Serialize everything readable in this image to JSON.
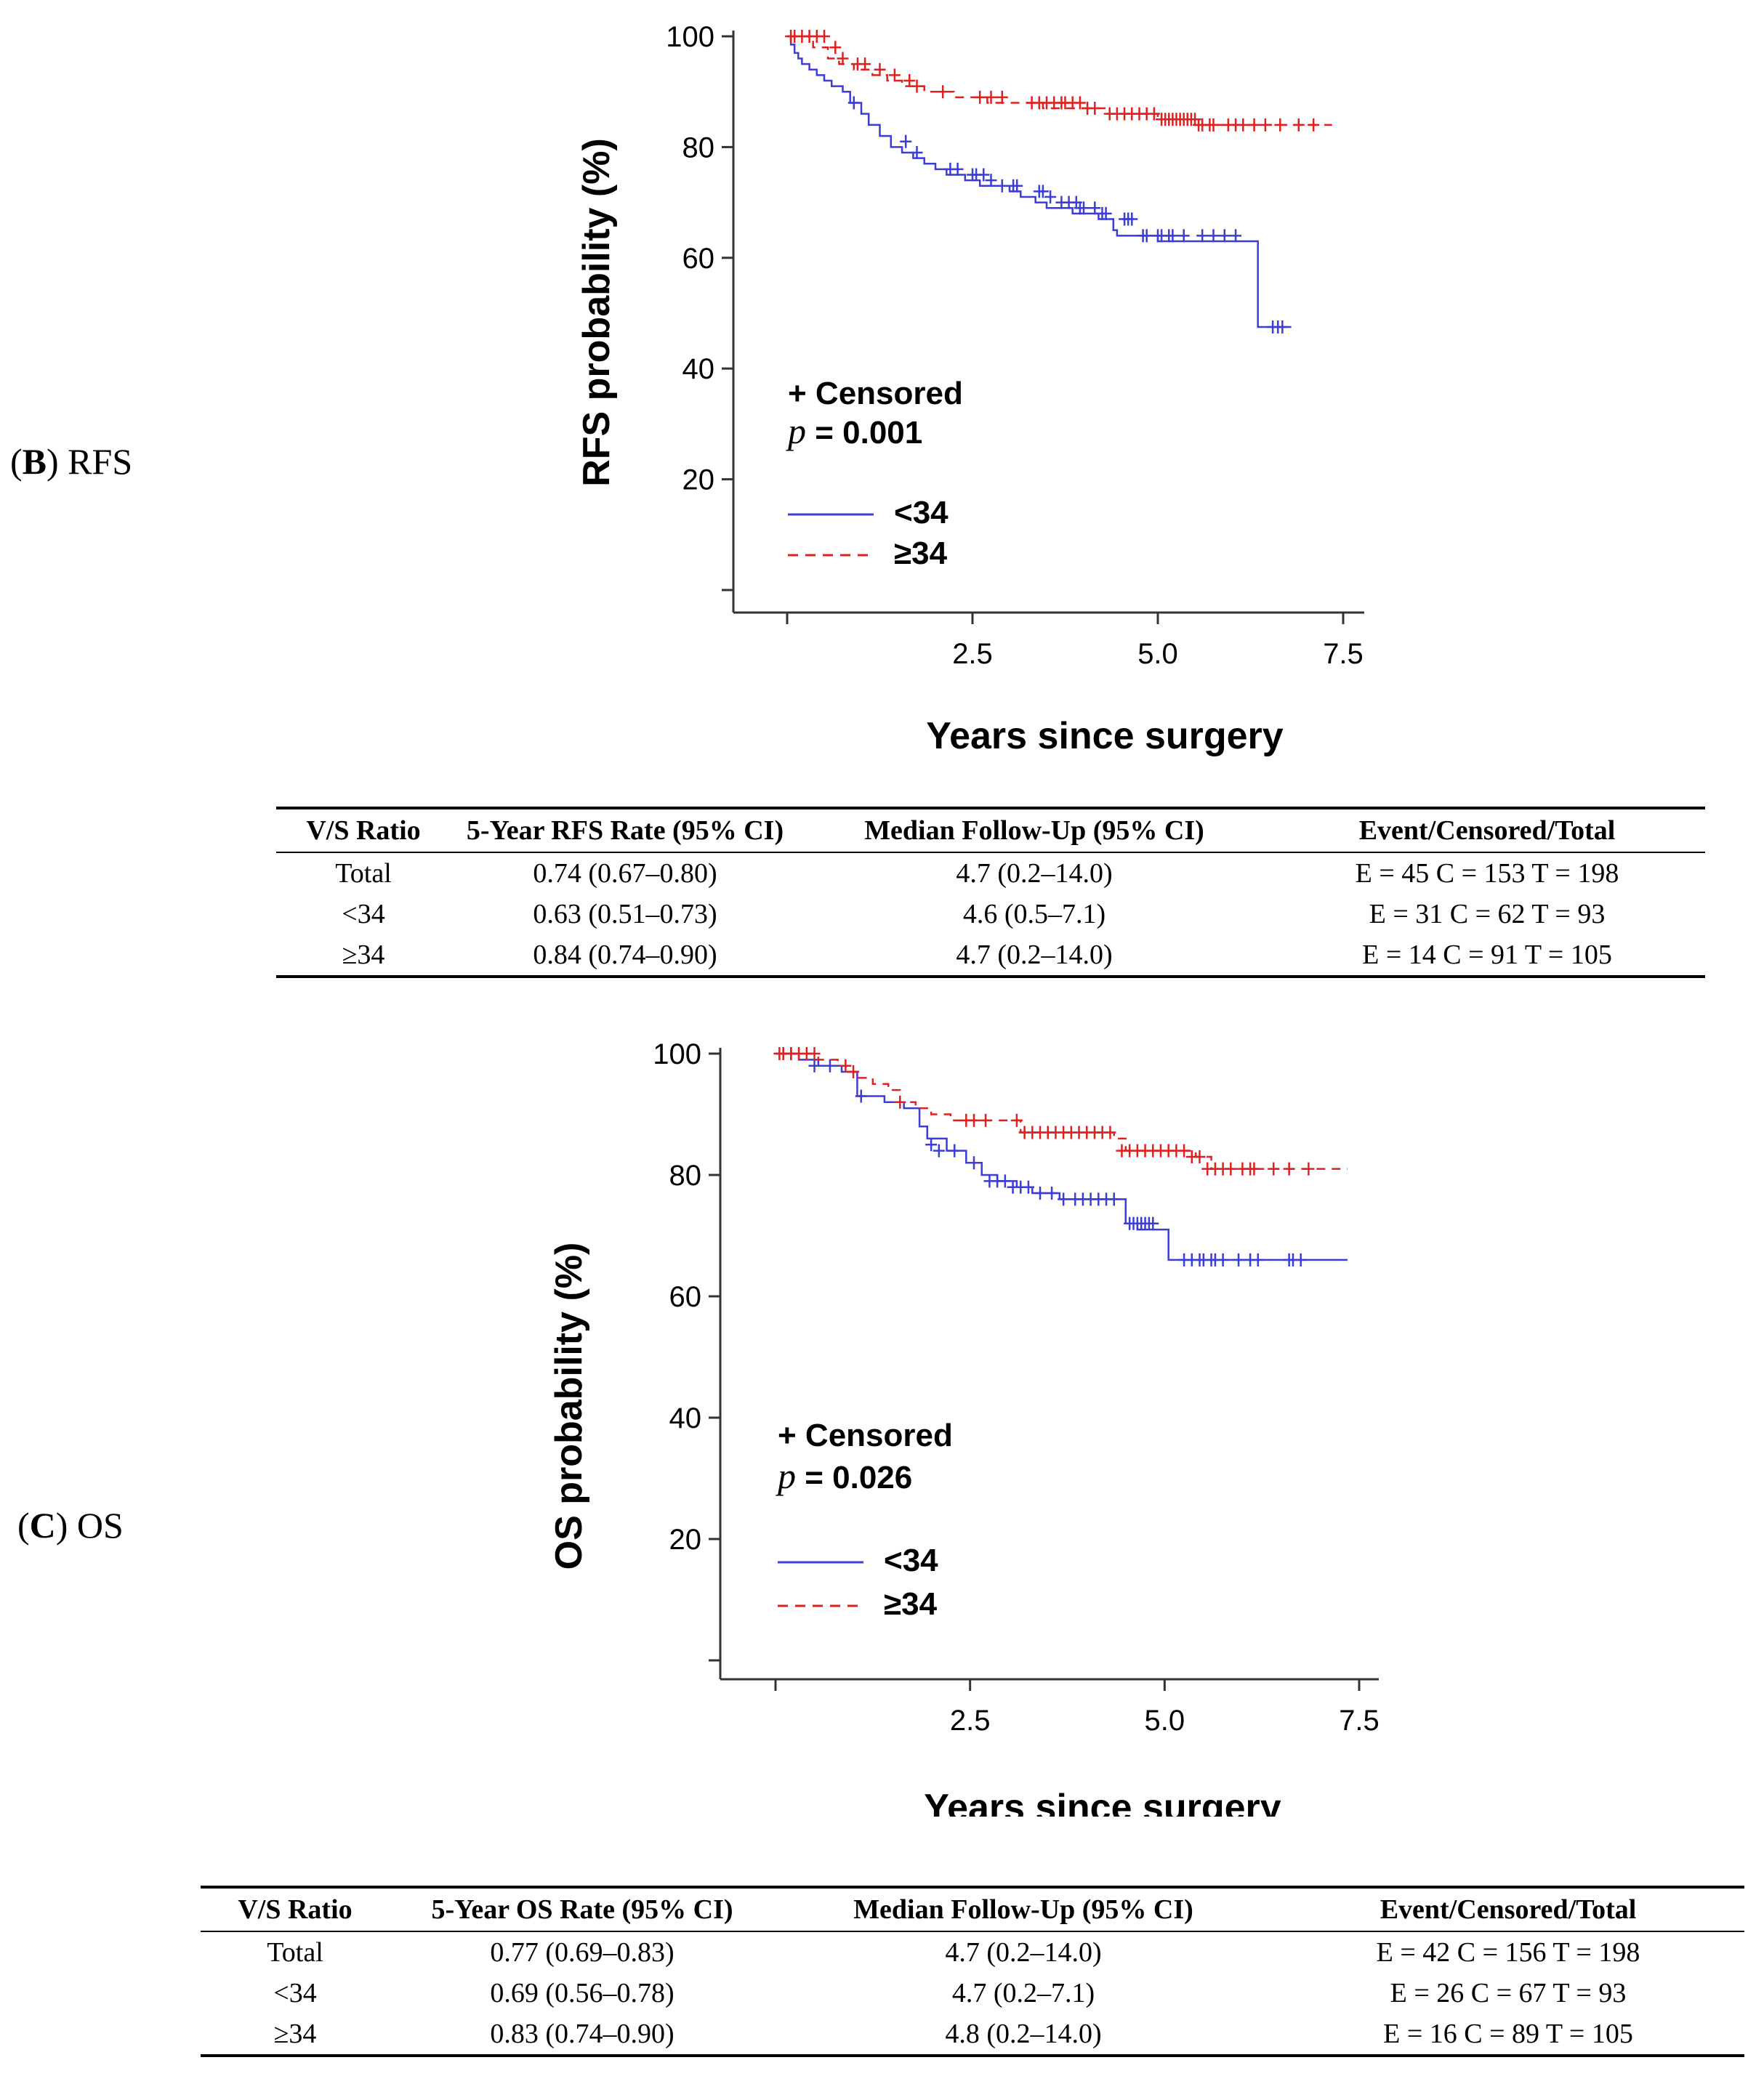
{
  "panels": [
    {
      "label_letter": "B",
      "label_text": "RFS",
      "chart_data": {
        "type": "line",
        "subtype": "kaplan-meier",
        "title": "",
        "xlabel": "Years since surgery",
        "ylabel": "RFS probability (%)",
        "xlim": [
          -0.5,
          7.8
        ],
        "ylim": [
          0,
          102
        ],
        "xticks": [
          "2.5",
          "5.0",
          "7.5"
        ],
        "yticks": [
          "100",
          "80",
          "60",
          "40",
          "20"
        ],
        "censored_label": "+ Censored",
        "p_symbol": "p",
        "p_text": " = 0.001",
        "series": [
          {
            "name": "<34",
            "color": "#3c3cd6",
            "dash": false,
            "x": [
              0,
              0.05,
              0.1,
              0.15,
              0.2,
              0.3,
              0.4,
              0.5,
              0.6,
              0.75,
              0.85,
              1.0,
              1.1,
              1.25,
              1.4,
              1.55,
              1.7,
              1.85,
              2.0,
              2.15,
              2.4,
              2.6,
              3.0,
              3.15,
              3.35,
              3.5,
              3.85,
              4.2,
              4.4,
              4.45,
              5.0,
              6.3,
              6.35,
              6.7,
              6.75,
              6.8
            ],
            "y": [
              100,
              98.5,
              97,
              96,
              95,
              94,
              93,
              92,
              91,
              90,
              88,
              86,
              84,
              82,
              80,
              79,
              78,
              77,
              76,
              75,
              74,
              73,
              72,
              71,
              70,
              69,
              68,
              67,
              65,
              64,
              63,
              63,
              47.5,
              47.5,
              47.5,
              47.5
            ],
            "censor_x": [
              0.9,
              1.6,
              1.75,
              2.2,
              2.3,
              2.5,
              2.55,
              2.65,
              2.75,
              2.9,
              3.05,
              3.1,
              3.4,
              3.45,
              3.55,
              3.7,
              3.8,
              3.9,
              3.95,
              4.0,
              4.15,
              4.25,
              4.3,
              4.55,
              4.6,
              4.65,
              4.8,
              4.85,
              5.0,
              5.05,
              5.15,
              5.2,
              5.35,
              5.6,
              5.75,
              5.9,
              6.05,
              6.55,
              6.62,
              6.68
            ],
            "censor_y": [
              88,
              81,
              79,
              76,
              76,
              75,
              75,
              75,
              74,
              73,
              73,
              73,
              72,
              72,
              71,
              70,
              70,
              70,
              69,
              69,
              69,
              68,
              68,
              67,
              67,
              67,
              64,
              64,
              64,
              64,
              64,
              64,
              64,
              64,
              64,
              64,
              64,
              47.5,
              47.5,
              47.5
            ]
          },
          {
            "name": "≥34",
            "color": "#e02020",
            "dash": true,
            "x": [
              0,
              0.35,
              0.55,
              0.7,
              0.9,
              1.15,
              1.35,
              1.55,
              1.85,
              2.25,
              2.7,
              3.2,
              3.45,
              4.3,
              5.0,
              5.6,
              6.5,
              7.35
            ],
            "y": [
              100,
              98,
              96,
              95,
              94,
              93,
              92,
              91,
              90,
              89,
              88,
              88,
              87,
              86,
              85,
              84,
              84,
              84
            ],
            "censor_x": [
              0.05,
              0.1,
              0.2,
              0.3,
              0.4,
              0.5,
              0.65,
              0.75,
              0.95,
              1.05,
              1.25,
              1.45,
              1.65,
              1.75,
              2.1,
              2.6,
              2.75,
              2.9,
              3.3,
              3.4,
              3.5,
              3.6,
              3.7,
              3.75,
              3.85,
              3.95,
              4.05,
              4.15,
              4.35,
              4.45,
              4.55,
              4.65,
              4.75,
              4.85,
              4.95,
              5.05,
              5.1,
              5.15,
              5.2,
              5.25,
              5.3,
              5.35,
              5.4,
              5.45,
              5.5,
              5.55,
              5.6,
              5.7,
              5.75,
              5.95,
              6.05,
              6.15,
              6.3,
              6.45,
              6.65,
              6.9,
              7.1
            ],
            "censor_y": [
              100,
              100,
              100,
              100,
              100,
              100,
              98,
              96,
              95,
              95,
              94,
              93,
              92,
              91,
              90,
              89,
              89,
              89,
              88,
              88,
              88,
              88,
              88,
              88,
              88,
              88,
              87,
              87,
              86,
              86,
              86,
              86,
              86,
              86,
              86,
              85,
              85,
              85,
              85,
              85,
              85,
              85,
              85,
              85,
              85,
              84,
              84,
              84,
              84,
              84,
              84,
              84,
              84,
              84,
              84,
              84,
              84
            ]
          }
        ]
      },
      "table": {
        "headers": [
          "V/S Ratio",
          "5-Year RFS Rate (95% CI)",
          "Median Follow-Up (95% CI)",
          "Event/Censored/Total"
        ],
        "rows": [
          [
            "Total",
            "0.74 (0.67–0.80)",
            "4.7 (0.2–14.0)",
            "E = 45 C = 153 T = 198"
          ],
          [
            "<34",
            "0.63 (0.51–0.73)",
            "4.6 (0.5–7.1)",
            "E = 31 C = 62 T = 93"
          ],
          [
            "≥34",
            "0.84 (0.74–0.90)",
            "4.7 (0.2–14.0)",
            "E = 14 C = 91 T = 105"
          ]
        ]
      }
    },
    {
      "label_letter": "C",
      "label_text": "OS",
      "chart_data": {
        "type": "line",
        "subtype": "kaplan-meier",
        "title": "",
        "xlabel": "Years since surgery",
        "ylabel": "OS probability (%)",
        "xlim": [
          -0.5,
          7.8
        ],
        "ylim": [
          0,
          102
        ],
        "xticks": [
          "2.5",
          "5.0",
          "7.5"
        ],
        "yticks": [
          "100",
          "80",
          "60",
          "40",
          "20"
        ],
        "censored_label": "+ Censored",
        "p_symbol": "p",
        "p_text": " = 0.026",
        "series": [
          {
            "name": "<34",
            "color": "#3c3cd6",
            "dash": false,
            "x": [
              0,
              0.3,
              0.55,
              0.85,
              1.05,
              1.4,
              1.65,
              1.85,
              1.95,
              2.2,
              2.45,
              2.65,
              2.85,
              3.1,
              3.3,
              3.65,
              4.5,
              4.65,
              5.05,
              6.0,
              7.35
            ],
            "y": [
              100,
              99,
              98,
              97,
              93,
              92,
              91,
              88,
              86,
              84,
              82,
              80,
              79,
              78,
              77,
              76,
              72,
              71,
              66,
              66,
              66
            ],
            "censor_x": [
              0.1,
              0.2,
              0.5,
              0.7,
              1.1,
              2.0,
              2.1,
              2.3,
              2.55,
              2.75,
              2.85,
              2.95,
              3.05,
              3.15,
              3.25,
              3.4,
              3.55,
              3.7,
              3.85,
              3.95,
              4.05,
              4.15,
              4.25,
              4.35,
              4.55,
              4.6,
              4.65,
              4.7,
              4.75,
              4.8,
              4.85,
              5.25,
              5.35,
              5.45,
              5.5,
              5.6,
              5.65,
              5.75,
              5.95,
              6.1,
              6.2,
              6.6,
              6.65,
              6.75
            ],
            "censor_y": [
              100,
              100,
              98,
              98,
              93,
              85,
              84,
              84,
              82,
              79,
              79,
              79,
              78,
              78,
              78,
              77,
              77,
              76,
              76,
              76,
              76,
              76,
              76,
              76,
              72,
              72,
              72,
              72,
              72,
              72,
              72,
              66,
              66,
              66,
              66,
              66,
              66,
              66,
              66,
              66,
              66,
              66,
              66,
              66
            ]
          },
          {
            "name": "≥34",
            "color": "#e02020",
            "dash": true,
            "x": [
              0,
              0.55,
              0.8,
              0.95,
              1.05,
              1.25,
              1.45,
              1.6,
              1.8,
              2.0,
              2.25,
              3.05,
              3.15,
              4.35,
              4.5,
              5.4,
              5.6,
              6.1,
              7.35
            ],
            "y": [
              100,
              99,
              98,
              97,
              96,
              95,
              94,
              92,
              91,
              90,
              89,
              89,
              87,
              86,
              84,
              83,
              81,
              81,
              81
            ],
            "censor_x": [
              0.05,
              0.1,
              0.2,
              0.3,
              0.4,
              0.5,
              0.9,
              1.0,
              1.6,
              2.45,
              2.55,
              2.7,
              3.1,
              3.2,
              3.3,
              3.4,
              3.5,
              3.6,
              3.7,
              3.8,
              3.9,
              4.0,
              4.1,
              4.2,
              4.3,
              4.45,
              4.55,
              4.65,
              4.75,
              4.85,
              4.95,
              5.05,
              5.15,
              5.25,
              5.35,
              5.45,
              5.55,
              5.65,
              5.75,
              5.85,
              6.0,
              6.1,
              6.15,
              6.4,
              6.6,
              6.85
            ],
            "censor_y": [
              100,
              100,
              100,
              100,
              100,
              100,
              98,
              97,
              92,
              89,
              89,
              89,
              89,
              87,
              87,
              87,
              87,
              87,
              87,
              87,
              87,
              87,
              87,
              87,
              87,
              84,
              84,
              84,
              84,
              84,
              84,
              84,
              84,
              84,
              83,
              83,
              81,
              81,
              81,
              81,
              81,
              81,
              81,
              81,
              81,
              81
            ]
          }
        ]
      },
      "table": {
        "headers": [
          "V/S Ratio",
          "5-Year OS Rate (95% CI)",
          "Median Follow-Up (95% CI)",
          "Event/Censored/Total"
        ],
        "rows": [
          [
            "Total",
            "0.77 (0.69–0.83)",
            "4.7 (0.2–14.0)",
            "E = 42 C = 156 T = 198"
          ],
          [
            "<34",
            "0.69 (0.56–0.78)",
            "4.7 (0.2–7.1)",
            "E = 26 C = 67 T = 93"
          ],
          [
            "≥34",
            "0.83 (0.74–0.90)",
            "4.8 (0.2–14.0)",
            "E = 16 C = 89 T = 105"
          ]
        ]
      }
    }
  ]
}
